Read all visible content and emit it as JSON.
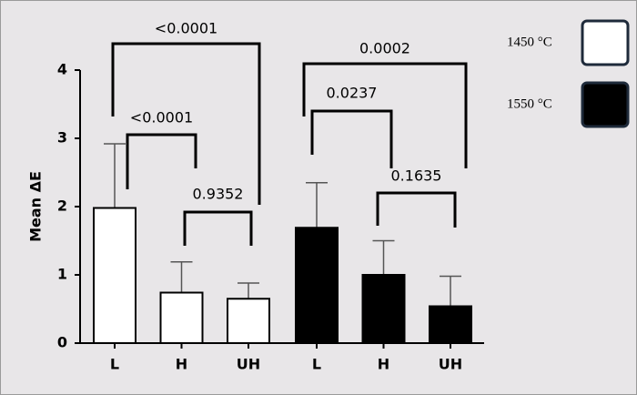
{
  "chart_data": {
    "type": "bar",
    "y_label": "Mean ΔE",
    "categories": [
      "L",
      "H",
      "UH"
    ],
    "series": [
      {
        "name": "1450 °C",
        "color": "#ffffff",
        "values": [
          1.98,
          0.74,
          0.65
        ],
        "errors": [
          0.94,
          0.45,
          0.23
        ]
      },
      {
        "name": "1550 °C",
        "color": "#000000",
        "values": [
          1.69,
          1.0,
          0.54
        ],
        "errors": [
          0.66,
          0.5,
          0.44
        ]
      }
    ],
    "ylim": [
      0,
      4
    ],
    "yticks": [
      0,
      1,
      2,
      3,
      4
    ],
    "annotations": [
      "<0.0001",
      "<0.0001",
      "0.9352",
      "0.0002",
      "0.0237",
      "0.1635"
    ]
  }
}
